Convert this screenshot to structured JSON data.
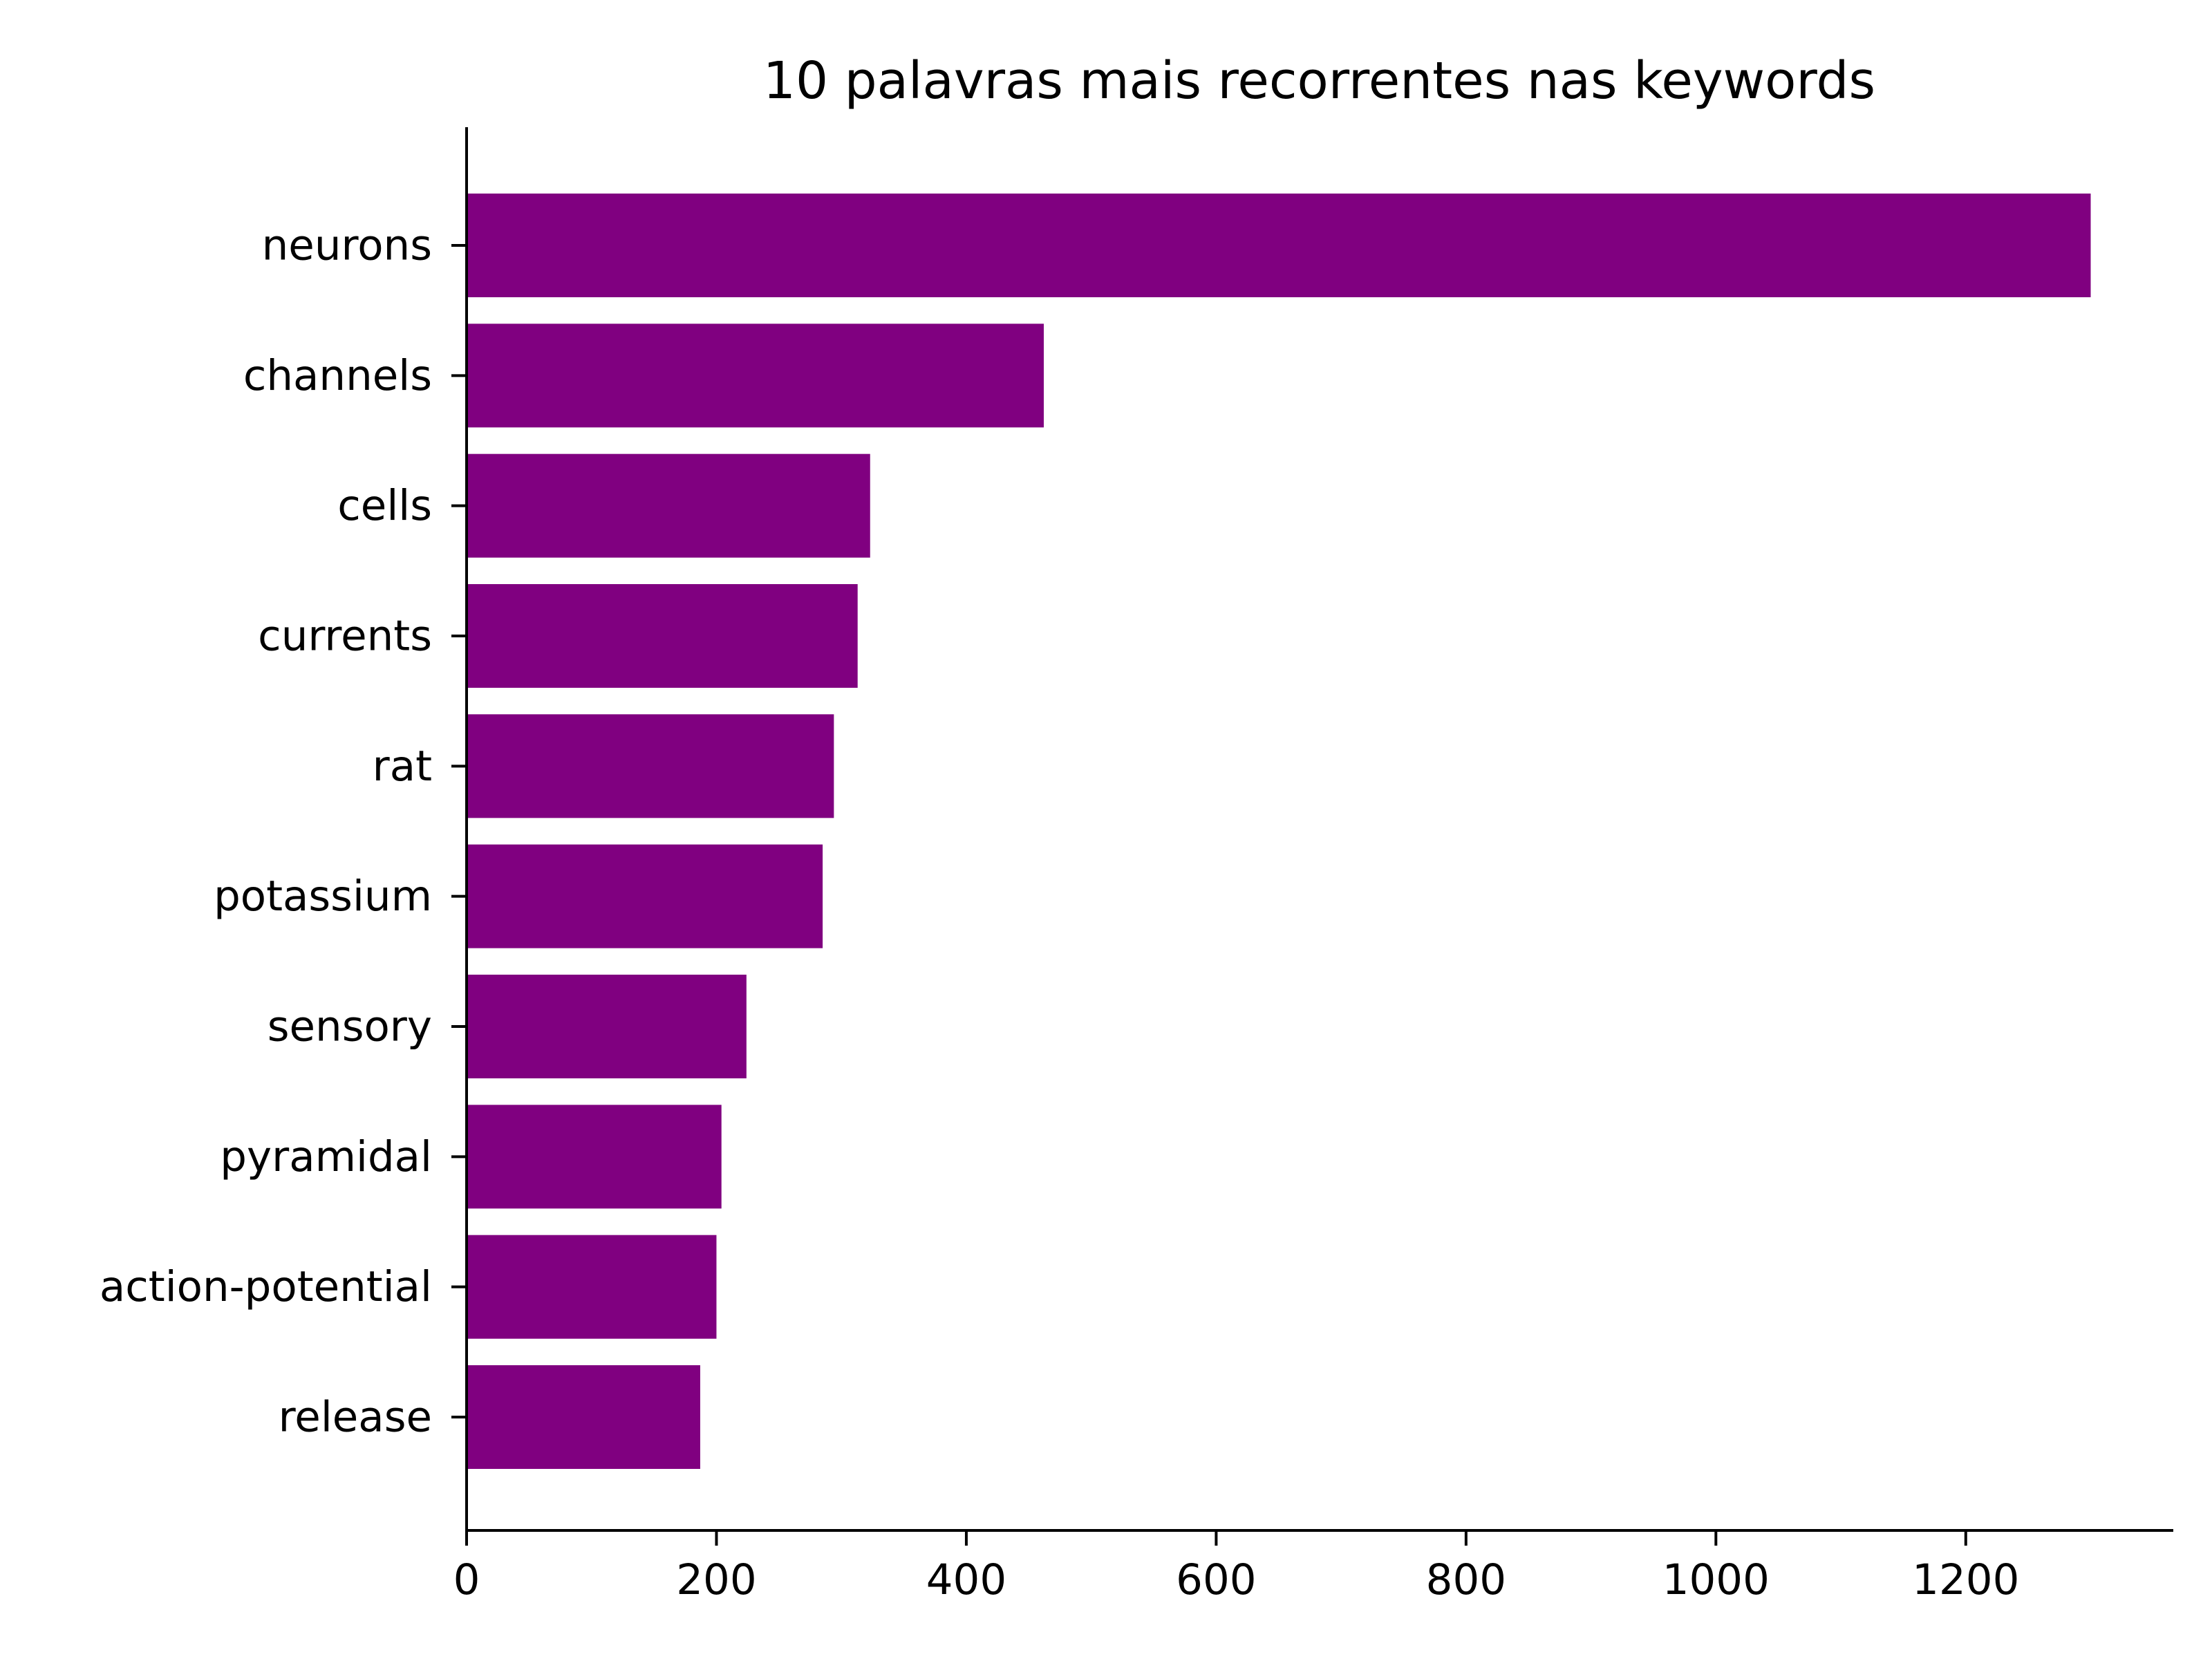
{
  "chart_data": {
    "type": "bar",
    "orientation": "horizontal",
    "title": "10 palavras mais recorrentes nas keywords",
    "xlabel": "",
    "ylabel": "",
    "categories": [
      "neurons",
      "channels",
      "cells",
      "currents",
      "rat",
      "potassium",
      "sensory",
      "pyramidal",
      "action-potential",
      "release"
    ],
    "values": [
      1300,
      462,
      323,
      313,
      294,
      285,
      224,
      204,
      200,
      187
    ],
    "xlim": [
      0,
      1365
    ],
    "xticks": [
      0,
      200,
      400,
      600,
      800,
      1000,
      1200
    ],
    "xtick_labels": [
      "0",
      "200",
      "400",
      "600",
      "800",
      "1000",
      "1200"
    ],
    "grid": false,
    "legend": "none",
    "colors": {
      "bar": "#800080",
      "axis": "#000000",
      "text": "#000000",
      "background": "#ffffff"
    }
  }
}
